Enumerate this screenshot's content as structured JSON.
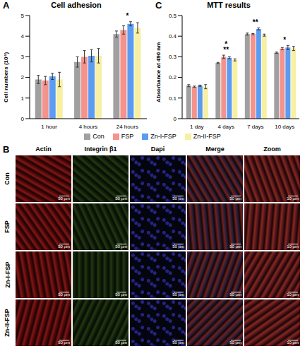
{
  "chart_data": [
    {
      "type": "bar",
      "panel": "A",
      "title": "Cell adhesion",
      "y_label": "Cell numbers (10⁴)",
      "categories": [
        "1 hour",
        "4 hours",
        "24 hours"
      ],
      "series": [
        {
          "name": "Con",
          "color": "#a0a0a0",
          "values": [
            1.9,
            2.75,
            4.1
          ],
          "errors": [
            0.2,
            0.25,
            0.15
          ]
        },
        {
          "name": "FSP",
          "color": "#f4928c",
          "values": [
            1.85,
            3.0,
            4.3
          ],
          "errors": [
            0.2,
            0.3,
            0.2
          ]
        },
        {
          "name": "Zn-I-FSP",
          "color": "#5b9cf2",
          "values": [
            2.05,
            3.05,
            4.6
          ],
          "errors": [
            0.15,
            0.3,
            0.1
          ]
        },
        {
          "name": "Zn-II-FSP",
          "color": "#f7f0a2",
          "values": [
            1.9,
            3.05,
            4.4
          ],
          "errors": [
            0.35,
            0.35,
            0.25
          ]
        }
      ],
      "ylim": [
        0,
        5
      ],
      "yticks": [
        0,
        1,
        2,
        3,
        4,
        5
      ],
      "legend": "bottom",
      "annotations": [
        {
          "text": "*",
          "category": "24 hours"
        }
      ]
    },
    {
      "type": "bar",
      "panel": "C",
      "title": "MTT results",
      "y_label": "Absorbance at 490 nm",
      "categories": [
        "1 day",
        "4 days",
        "7 days",
        "10 days"
      ],
      "series": [
        {
          "name": "Con",
          "color": "#a0a0a0",
          "values": [
            0.16,
            0.27,
            0.41,
            0.32
          ],
          "errors": [
            0.005,
            0.003,
            0.005,
            0.003
          ]
        },
        {
          "name": "FSP",
          "color": "#f4928c",
          "values": [
            0.155,
            0.3,
            0.41,
            0.34
          ],
          "errors": [
            0.003,
            0.008,
            0.003,
            0.005
          ]
        },
        {
          "name": "Zn-I-FSP",
          "color": "#5b9cf2",
          "values": [
            0.16,
            0.295,
            0.435,
            0.345
          ],
          "errors": [
            0.003,
            0.005,
            0.005,
            0.01
          ]
        },
        {
          "name": "Zn-II-FSP",
          "color": "#f7f0a2",
          "values": [
            0.155,
            0.285,
            0.405,
            0.34
          ],
          "errors": [
            0.01,
            0.005,
            0.005,
            0.01
          ]
        }
      ],
      "ylim": [
        0,
        0.5
      ],
      "yticks": [
        0,
        0.1,
        0.2,
        0.3,
        0.4,
        0.5
      ],
      "legend": "bottom",
      "annotations": [
        {
          "text": "**",
          "category": "4 days"
        },
        {
          "text": "*",
          "category": "4 days"
        },
        {
          "text": "**",
          "category": "7 days"
        },
        {
          "text": "*",
          "category": "10 days"
        }
      ]
    }
  ],
  "panel_b": {
    "panel": "B",
    "columns": [
      "Actin",
      "Integrin β1",
      "Dapi",
      "Merge",
      "Zoom"
    ],
    "rows": [
      "Con",
      "FSP",
      "Zn-I-FSP",
      "Zn-II-FSP"
    ],
    "scale_bars": [
      "50 µm",
      "50 µm",
      "50 µm",
      "50 µm",
      "10 µm"
    ]
  }
}
